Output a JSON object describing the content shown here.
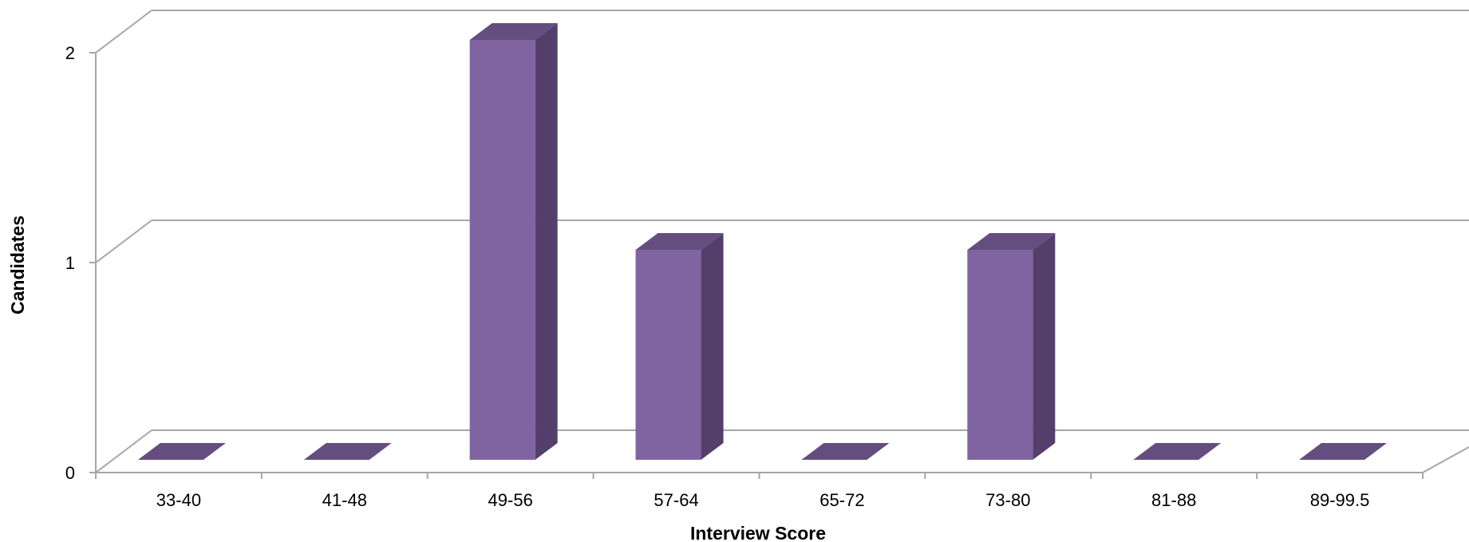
{
  "chart_data": {
    "type": "bar",
    "style": "3d-column",
    "categories": [
      "33-40",
      "41-48",
      "49-56",
      "57-64",
      "65-72",
      "73-80",
      "81-88",
      "89-99.5"
    ],
    "values": [
      0,
      0,
      2,
      1,
      0,
      1,
      0,
      0
    ],
    "xlabel": "Interview Score",
    "ylabel": "Candidates",
    "ylim": [
      0,
      2
    ],
    "yticks": [
      "0",
      "1",
      "2"
    ],
    "grid": true,
    "legend": "none",
    "colors": {
      "bar_front": "#8064A2",
      "bar_side": "#533F6A",
      "bar_top": "#644E80",
      "grid": "#A6A6A6",
      "axis": "#A6A6A6"
    }
  }
}
